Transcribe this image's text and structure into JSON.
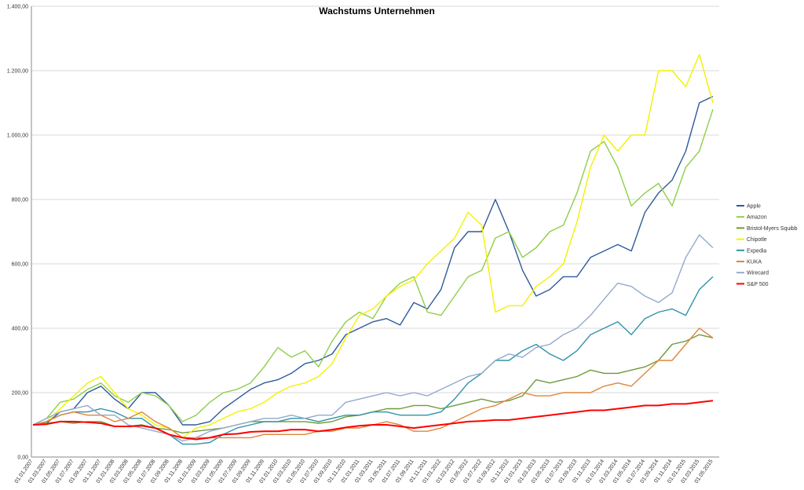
{
  "chart_data": {
    "type": "line",
    "title": "Wachstums Unternehmen",
    "categories": [
      "01.01.2007",
      "01.03.2007",
      "01.05.2007",
      "01.07.2007",
      "01.09.2007",
      "01.11.2007",
      "01.01.2008",
      "01.03.2008",
      "01.05.2008",
      "01.07.2008",
      "01.09.2008",
      "01.11.2008",
      "01.01.2009",
      "01.03.2009",
      "01.05.2009",
      "01.07.2009",
      "01.09.2009",
      "01.11.2009",
      "01.01.2010",
      "01.03.2010",
      "01.05.2010",
      "01.07.2010",
      "01.09.2010",
      "01.11.2010",
      "01.01.2011",
      "01.03.2011",
      "01.05.2011",
      "01.07.2011",
      "01.09.2011",
      "01.11.2011",
      "01.01.2012",
      "01.03.2012",
      "01.05.2012",
      "01.07.2012",
      "01.09.2012",
      "01.11.2012",
      "01.01.2013",
      "01.03.2013",
      "01.05.2013",
      "01.07.2013",
      "01.09.2013",
      "01.11.2013",
      "01.01.2014",
      "01.03.2014",
      "01.05.2014",
      "01.07.2014",
      "01.09.2014",
      "01.11.2014",
      "01.01.2015",
      "01.03.2015",
      "01.05.2015"
    ],
    "series": [
      {
        "name": "Apple",
        "color": "#2e5b9a",
        "values": [
          100,
          105,
          140,
          150,
          200,
          220,
          180,
          150,
          200,
          200,
          160,
          100,
          100,
          110,
          150,
          180,
          210,
          230,
          240,
          260,
          290,
          300,
          320,
          380,
          400,
          420,
          430,
          410,
          480,
          460,
          520,
          650,
          700,
          700,
          800,
          700,
          580,
          500,
          520,
          560,
          560,
          620,
          640,
          660,
          640,
          760,
          820,
          860,
          950,
          1100,
          1120
        ]
      },
      {
        "name": "Amazon",
        "color": "#8fce4a",
        "values": [
          100,
          120,
          170,
          180,
          210,
          230,
          190,
          170,
          200,
          190,
          160,
          110,
          130,
          170,
          200,
          210,
          230,
          280,
          340,
          310,
          330,
          280,
          360,
          420,
          450,
          430,
          500,
          540,
          560,
          450,
          440,
          500,
          560,
          580,
          680,
          700,
          620,
          650,
          700,
          720,
          820,
          950,
          980,
          900,
          780,
          820,
          850,
          780,
          900,
          950,
          1080
        ]
      },
      {
        "name": "Bristol-Myers Squibb",
        "color": "#6e9a3c",
        "values": [
          100,
          105,
          110,
          105,
          110,
          110,
          95,
          95,
          100,
          90,
          85,
          75,
          80,
          85,
          90,
          100,
          110,
          110,
          110,
          110,
          110,
          105,
          110,
          125,
          130,
          140,
          150,
          150,
          160,
          160,
          150,
          160,
          170,
          180,
          170,
          175,
          190,
          240,
          230,
          240,
          250,
          270,
          260,
          260,
          270,
          280,
          300,
          350,
          360,
          380,
          370
        ]
      },
      {
        "name": "Chipotle",
        "color": "#f2f200",
        "values": [
          100,
          110,
          150,
          190,
          230,
          250,
          200,
          150,
          130,
          100,
          90,
          60,
          90,
          100,
          120,
          140,
          150,
          170,
          200,
          220,
          230,
          250,
          290,
          370,
          440,
          460,
          500,
          530,
          550,
          600,
          640,
          680,
          760,
          720,
          450,
          470,
          470,
          530,
          560,
          600,
          730,
          900,
          1000,
          950,
          1000,
          1000,
          1200,
          1200,
          1150,
          1250,
          1100
        ]
      },
      {
        "name": "Expedia",
        "color": "#2f93a8",
        "values": [
          100,
          110,
          130,
          140,
          140,
          150,
          140,
          120,
          120,
          90,
          70,
          40,
          40,
          45,
          70,
          90,
          100,
          110,
          110,
          120,
          120,
          110,
          120,
          130,
          130,
          140,
          140,
          130,
          130,
          130,
          140,
          180,
          230,
          260,
          300,
          300,
          330,
          350,
          320,
          300,
          330,
          380,
          400,
          420,
          380,
          430,
          450,
          460,
          440,
          520,
          560
        ]
      },
      {
        "name": "KUKA",
        "color": "#e0853a",
        "values": [
          100,
          110,
          130,
          140,
          130,
          130,
          110,
          120,
          140,
          110,
          90,
          60,
          60,
          60,
          60,
          60,
          60,
          70,
          70,
          70,
          70,
          80,
          80,
          90,
          90,
          100,
          110,
          100,
          80,
          80,
          90,
          110,
          130,
          150,
          160,
          180,
          200,
          190,
          190,
          200,
          200,
          200,
          220,
          230,
          220,
          260,
          300,
          300,
          350,
          400,
          370
        ]
      },
      {
        "name": "Wirecard",
        "color": "#94a9cc",
        "values": [
          100,
          120,
          140,
          150,
          160,
          130,
          130,
          100,
          90,
          80,
          70,
          50,
          60,
          80,
          90,
          100,
          110,
          120,
          120,
          130,
          120,
          130,
          130,
          170,
          180,
          190,
          200,
          190,
          200,
          190,
          210,
          230,
          250,
          260,
          300,
          320,
          310,
          340,
          350,
          380,
          400,
          440,
          490,
          540,
          530,
          500,
          480,
          510,
          620,
          690,
          650
        ]
      },
      {
        "name": "S&P 500",
        "color": "#ff0000",
        "values": [
          100,
          102,
          110,
          110,
          108,
          105,
          95,
          95,
          97,
          90,
          70,
          60,
          55,
          60,
          70,
          72,
          78,
          80,
          80,
          85,
          85,
          80,
          85,
          92,
          97,
          100,
          100,
          95,
          90,
          95,
          100,
          105,
          110,
          112,
          115,
          115,
          120,
          125,
          130,
          135,
          140,
          145,
          145,
          150,
          155,
          160,
          160,
          165,
          165,
          170,
          175
        ]
      }
    ],
    "ylim": [
      0,
      1400
    ],
    "yticks": [
      {
        "value": 0,
        "label": "0,00"
      },
      {
        "value": 200,
        "label": "200,00"
      },
      {
        "value": 400,
        "label": "400,00"
      },
      {
        "value": 600,
        "label": "600,00"
      },
      {
        "value": 800,
        "label": "800,00"
      },
      {
        "value": 1000,
        "label": "1.000,00"
      },
      {
        "value": 1200,
        "label": "1.200,00"
      },
      {
        "value": 1400,
        "label": "1.400,00"
      }
    ],
    "grid": true
  }
}
